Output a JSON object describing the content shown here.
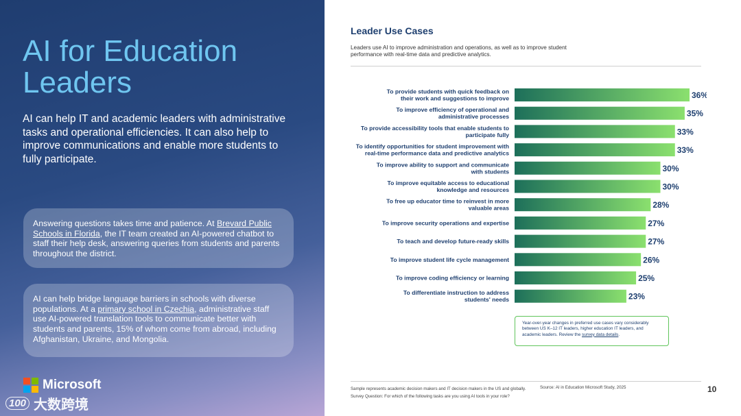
{
  "left": {
    "title": "AI for Education Leaders",
    "body": "AI can help IT and academic leaders with administrative tasks and operational efficiencies. It can also help to improve communications and enable more students to fully participate.",
    "card1": {
      "pre": "Answering questions takes time and patience. At ",
      "link": "Brevard Public Schools in Florida",
      "post": ", the IT team created an AI-powered chatbot to staff their help desk, answering queries from students and parents throughout the district."
    },
    "card2": {
      "pre": "AI can help bridge language barriers in schools with diverse populations. At a ",
      "link": "primary school in Czechia",
      "post": ", administrative staff use AI-powered translation tools to communicate better with students and parents, 15% of whom come from abroad, including Afghanistan, Ukraine, and Mongolia."
    },
    "brand": "Microsoft",
    "watermark": "大数跨境",
    "watermark_icon": "100",
    "logo_colors": [
      "#f25022",
      "#7fba00",
      "#00a4ef",
      "#ffb900"
    ]
  },
  "chart_heading": "Leader Use Cases",
  "chart_subtitle": "Leaders use AI to improve administration and operations, as well as to improve student performance with real-time data and predictive analytics.",
  "chart_data": {
    "type": "bar",
    "orientation": "horizontal",
    "categories": [
      "To provide students with quick feedback on their work and suggestions to improve",
      "To improve efficiency of operational and administrative processes",
      "To provide accessibility tools that enable students to participate fully",
      "To identify opportunities for student improvement with real-time performance data and predictive analytics",
      "To improve ability to support and communicate with students",
      "To improve equitable access to educational knowledge and resources",
      "To free up educator time to reinvest in more valuable areas",
      "To improve security operations and expertise",
      "To teach and develop future-ready skills",
      "To improve student life cycle management",
      "To improve coding efficiency or learning",
      "To differentiate instruction to address students' needs"
    ],
    "label_lines": [
      [
        "To provide students with quick feedback on",
        "their work and suggestions to improve"
      ],
      [
        "To improve efficiency of operational and",
        "administrative processes"
      ],
      [
        "To provide accessibility tools that enable students to",
        "participate fully"
      ],
      [
        "To identify opportunities for student improvement with",
        "real-time performance data and predictive analytics"
      ],
      [
        "To improve ability to support and communicate",
        "with students"
      ],
      [
        "To improve equitable access to educational",
        "knowledge and resources"
      ],
      [
        "To free up educator time to reinvest in more",
        "valuable areas"
      ],
      [
        "To improve security operations and expertise"
      ],
      [
        "To teach and develop future-ready skills"
      ],
      [
        "To improve student life cycle management"
      ],
      [
        "To improve coding efficiency or learning"
      ],
      [
        "To differentiate instruction to address",
        "students' needs"
      ]
    ],
    "values": [
      36,
      35,
      33,
      33,
      30,
      30,
      28,
      27,
      27,
      26,
      25,
      23
    ],
    "value_suffix": "%",
    "xlim": [
      0,
      36
    ],
    "grid": false,
    "bar_gradient": [
      "#1d6f5a",
      "#8be06e"
    ],
    "value_label_color": "#1e3f6f"
  },
  "note": {
    "pre": "Year-over-year changes in preferred use cases vary considerably between US K–12 IT leaders, higher education IT leaders, and academic leaders. Review the ",
    "link": "survey data details",
    "post": "."
  },
  "footer": {
    "sample": "Sample represents academic decision makers and IT decision makers in the US and globally.",
    "question": "Survey Question: For which of the following tasks are you using AI tools in your role?",
    "source": "Source: AI in Education Microsoft Study, 2025",
    "page_number": "10"
  }
}
